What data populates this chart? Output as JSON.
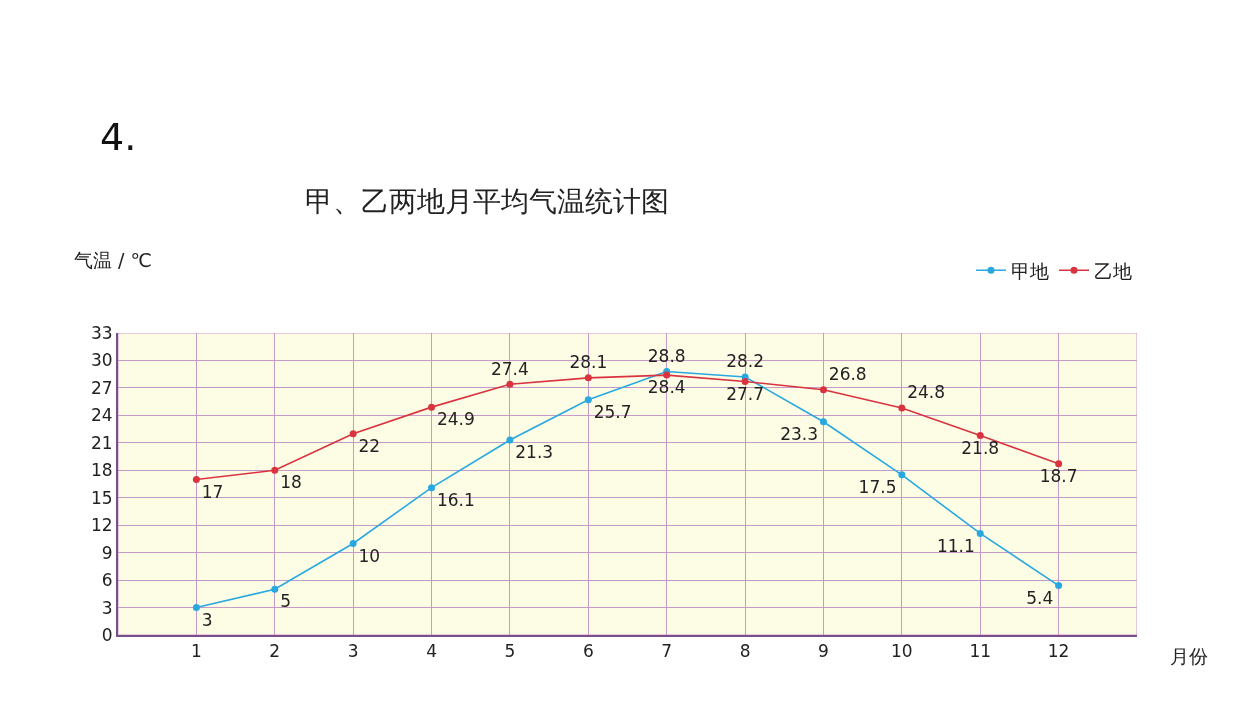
{
  "chart_data": {
    "type": "line",
    "title": "甲、乙两地月平均气温统计图",
    "xlabel": "月份",
    "ylabel": "气温 / ℃",
    "annotations": [
      "4."
    ],
    "x": [
      1,
      2,
      3,
      4,
      5,
      6,
      7,
      8,
      9,
      10,
      11,
      12
    ],
    "series": [
      {
        "name": "甲地",
        "color": "#29a8e0",
        "values": [
          3,
          5,
          10,
          16.1,
          21.3,
          25.7,
          28.8,
          28.2,
          23.3,
          17.5,
          11.1,
          5.4
        ]
      },
      {
        "name": "乙地",
        "color": "#d9333f",
        "values": [
          17,
          18,
          22,
          24.9,
          27.4,
          28.1,
          28.4,
          27.7,
          26.8,
          24.8,
          21.8,
          18.7
        ]
      }
    ],
    "xlim": [
      0,
      13
    ],
    "xticks": [
      1,
      2,
      3,
      4,
      5,
      6,
      7,
      8,
      9,
      10,
      11,
      12
    ],
    "ylim": [
      0,
      33
    ],
    "yticks": [
      0,
      3,
      6,
      9,
      12,
      15,
      18,
      21,
      24,
      27,
      30,
      33
    ],
    "grid": true,
    "legend": "top right",
    "marker": "circle",
    "line_style": "solid",
    "data_labels": true
  }
}
